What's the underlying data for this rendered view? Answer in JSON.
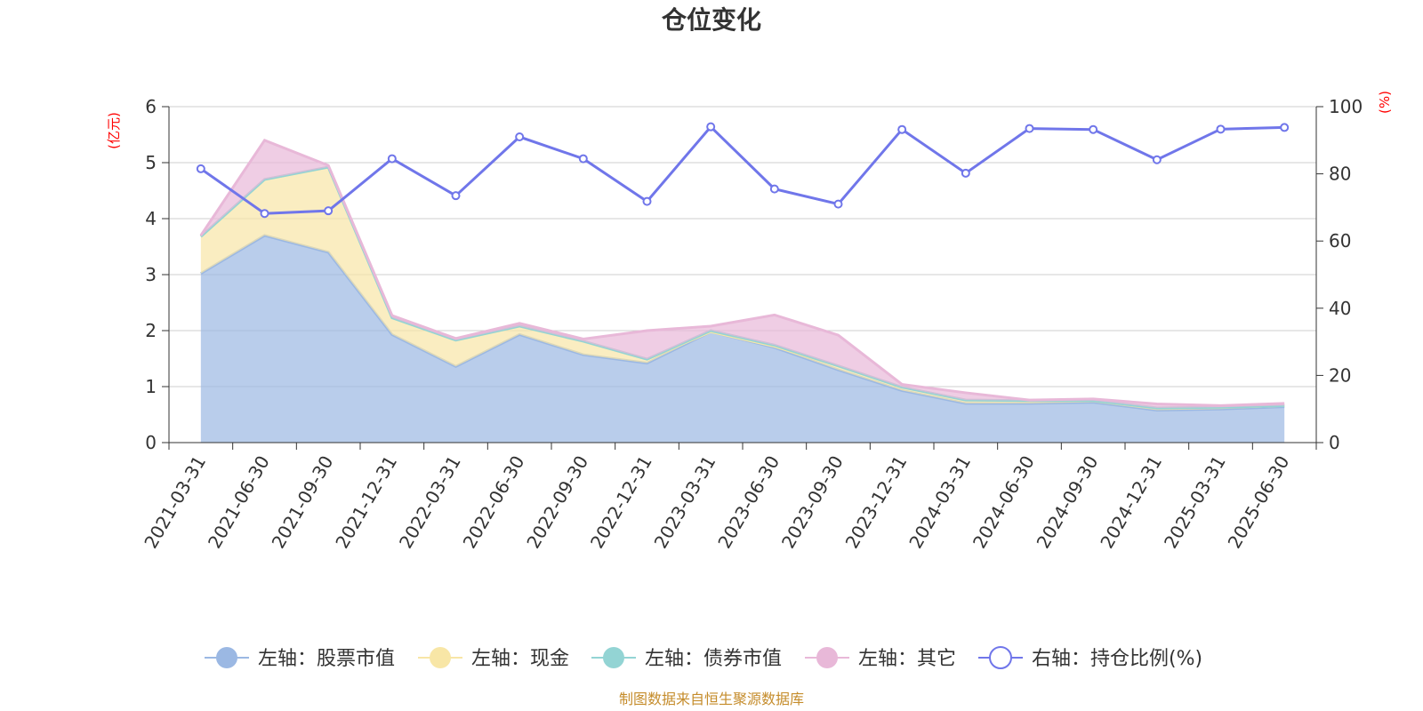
{
  "chart_data": {
    "type": "area",
    "title": "仓位变化",
    "left_unit": "(亿元)",
    "right_unit": "(%)",
    "categories": [
      "2021-03-31",
      "2021-06-30",
      "2021-09-30",
      "2021-12-31",
      "2022-03-31",
      "2022-06-30",
      "2022-09-30",
      "2022-12-31",
      "2023-03-31",
      "2023-06-30",
      "2023-09-30",
      "2023-12-31",
      "2024-03-31",
      "2024-06-30",
      "2024-09-30",
      "2024-12-31",
      "2025-03-31",
      "2025-06-30"
    ],
    "left_ylim": [
      0,
      6
    ],
    "left_ticks": [
      "0",
      "1",
      "2",
      "3",
      "4",
      "5",
      "6"
    ],
    "right_ylim": [
      0,
      100
    ],
    "right_ticks": [
      "0",
      "20",
      "40",
      "60",
      "80",
      "100"
    ],
    "grid": true,
    "legend_position": "bottom",
    "series": [
      {
        "name": "左轴：股票市值",
        "axis": "left",
        "kind": "stacked-area",
        "color": "#9bb8e3",
        "values": [
          3.02,
          3.7,
          3.4,
          1.93,
          1.36,
          1.93,
          1.57,
          1.42,
          1.98,
          1.7,
          1.3,
          0.93,
          0.7,
          0.7,
          0.72,
          0.58,
          0.6,
          0.64
        ]
      },
      {
        "name": "左轴：现金",
        "axis": "left",
        "kind": "stacked-area",
        "color": "#f8e6a6",
        "values": [
          0.66,
          1.0,
          1.52,
          0.3,
          0.47,
          0.15,
          0.24,
          0.07,
          0.0,
          0.02,
          0.07,
          0.06,
          0.06,
          0.05,
          0.03,
          0.04,
          0.03,
          0.02
        ]
      },
      {
        "name": "左轴：债券市值",
        "axis": "left",
        "kind": "stacked-area",
        "color": "#93d4d4",
        "values": [
          0.0,
          0.0,
          0.0,
          0.0,
          0.0,
          0.0,
          0.0,
          0.0,
          0.02,
          0.02,
          0.0,
          0.0,
          0.0,
          0.0,
          0.0,
          0.0,
          0.0,
          0.0
        ]
      },
      {
        "name": "左轴：其它",
        "axis": "left",
        "kind": "stacked-area",
        "color": "#e8b8d8",
        "values": [
          0.02,
          0.7,
          0.03,
          0.04,
          0.03,
          0.05,
          0.04,
          0.51,
          0.08,
          0.54,
          0.55,
          0.05,
          0.13,
          0.01,
          0.03,
          0.07,
          0.03,
          0.04
        ]
      },
      {
        "name": "右轴：持仓比例(%)",
        "axis": "right",
        "kind": "line",
        "color": "#7076ea",
        "values": [
          81.5,
          68.2,
          69.0,
          84.5,
          73.5,
          91.0,
          84.5,
          71.8,
          94.0,
          75.5,
          71.0,
          93.2,
          80.2,
          93.5,
          93.2,
          84.2,
          93.3,
          93.8
        ]
      }
    ]
  },
  "footer": {
    "source": "制图数据来自恒生聚源数据库"
  }
}
